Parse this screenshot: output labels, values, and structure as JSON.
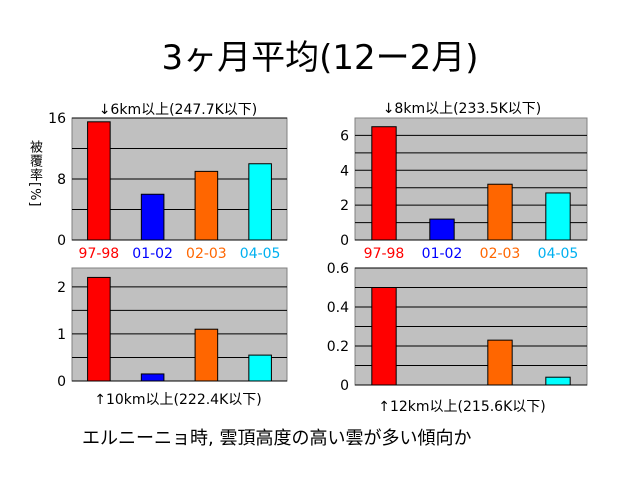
{
  "title": "3ヶ月平均(12ー2月)",
  "ylabel": "被覆率[%]",
  "caption": "エルニーニョ時, 雲頂高度の高い雲が多い傾向か",
  "colors": {
    "97-98": "#ff0000",
    "01-02": "#0000ff",
    "02-03": "#ff6600",
    "04-05": "#00ffff",
    "plot_bg": "#c0c0c0"
  },
  "chart_data": [
    {
      "type": "bar",
      "title": "↓6km以上(247.7K以下)",
      "categories": [
        "97-98",
        "01-02",
        "02-03",
        "04-05"
      ],
      "values": [
        15.5,
        6,
        9,
        10
      ],
      "ylim": [
        0,
        16
      ],
      "yticks": [
        "0",
        "8",
        "16"
      ],
      "ytick_values": [
        0,
        8,
        16
      ],
      "grid": true
    },
    {
      "type": "bar",
      "title": "↓8km以上(233.5K以下)",
      "categories": [
        "97-98",
        "01-02",
        "02-03",
        "04-05"
      ],
      "values": [
        6.5,
        1.2,
        3.2,
        2.7
      ],
      "ylim": [
        0,
        7
      ],
      "yticks": [
        "0",
        "2",
        "4",
        "6"
      ],
      "ytick_values": [
        0,
        2,
        4,
        6
      ],
      "grid": true
    },
    {
      "type": "bar",
      "title": "↑10km以上(222.4K以下)",
      "categories": [
        "97-98",
        "01-02",
        "02-03",
        "04-05"
      ],
      "values": [
        2.2,
        0.15,
        1.1,
        0.55
      ],
      "ylim": [
        0,
        2.4
      ],
      "yticks": [
        "0",
        "1",
        "2"
      ],
      "ytick_values": [
        0,
        1,
        2
      ],
      "grid": true
    },
    {
      "type": "bar",
      "title": "↑12km以上(215.6K以下)",
      "categories": [
        "97-98",
        "01-02",
        "02-03",
        "04-05"
      ],
      "values": [
        0.5,
        0,
        0.23,
        0.04
      ],
      "ylim": [
        0,
        0.6
      ],
      "yticks": [
        "0",
        "0.2",
        "0.4",
        "0.6"
      ],
      "ytick_values": [
        0,
        0.2,
        0.4,
        0.6
      ],
      "grid": true
    }
  ]
}
